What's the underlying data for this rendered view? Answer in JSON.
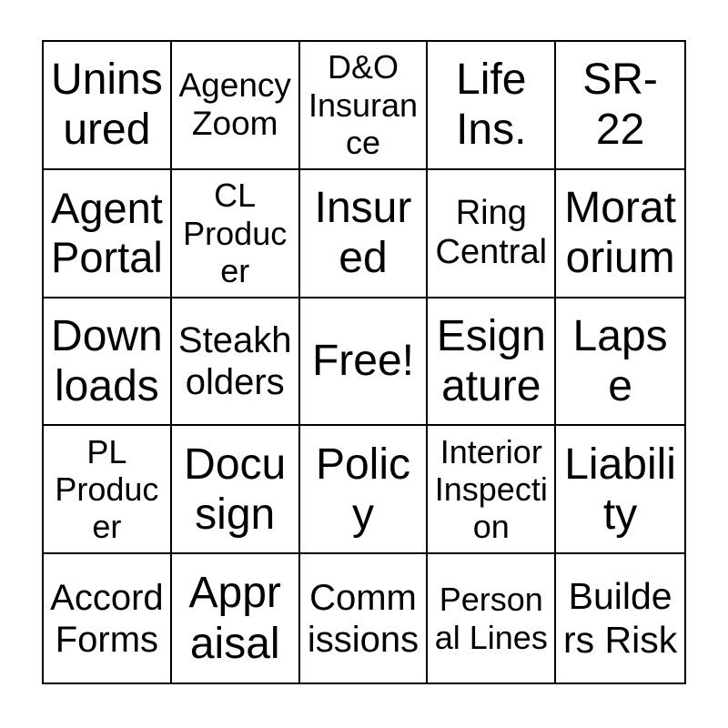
{
  "page": {
    "background_color": "#ffffff"
  },
  "card": {
    "rows": 5,
    "cols": 5,
    "border_color": "#000000",
    "cell_background": "#ffffff",
    "text_color": "#000000",
    "free_space_index": 12,
    "cells": [
      {
        "label": "Uninsured"
      },
      {
        "label": "Agency Zoom"
      },
      {
        "label": "D&O Insurance"
      },
      {
        "label": "Life Ins."
      },
      {
        "label": "SR-22"
      },
      {
        "label": "Agent Portal"
      },
      {
        "label": "CL Producer"
      },
      {
        "label": "Insured"
      },
      {
        "label": "Ring Central"
      },
      {
        "label": "Moratorium"
      },
      {
        "label": "Downloads"
      },
      {
        "label": "Steakholders"
      },
      {
        "label": "Free!"
      },
      {
        "label": "Esignature"
      },
      {
        "label": "Lapse"
      },
      {
        "label": "PL Producer"
      },
      {
        "label": "Docusign"
      },
      {
        "label": "Policy"
      },
      {
        "label": "Interior Inspection"
      },
      {
        "label": "Liability"
      },
      {
        "label": "Accord Forms"
      },
      {
        "label": "Appraisal"
      },
      {
        "label": "Commissions"
      },
      {
        "label": "Personal Lines"
      },
      {
        "label": "Builders Risk"
      }
    ]
  }
}
